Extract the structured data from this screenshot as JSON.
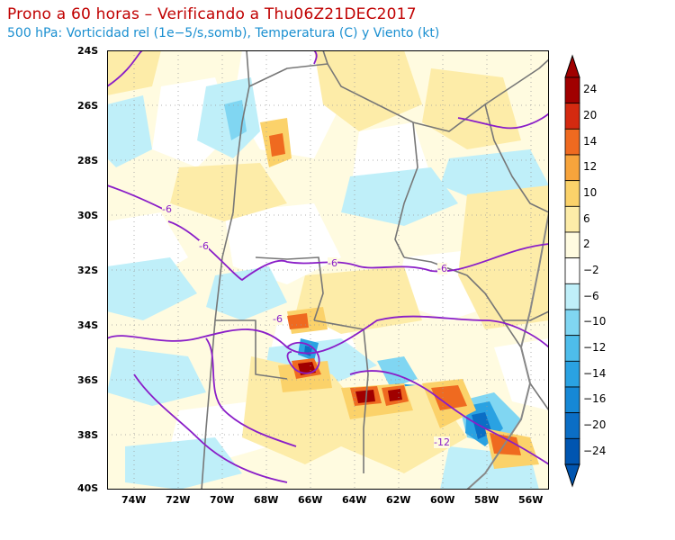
{
  "header": {
    "title": "Prono a 60 horas – Verificando a Thu06Z21DEC2017",
    "subtitle": "500 hPa: Vorticidad rel (1e−5/s,somb), Temperatura (C) y Viento (kt)"
  },
  "map": {
    "lat_labels": [
      "24S",
      "26S",
      "28S",
      "30S",
      "32S",
      "34S",
      "36S",
      "38S",
      "40S"
    ],
    "lon_labels": [
      "74W",
      "72W",
      "70W",
      "68W",
      "66W",
      "64W",
      "62W",
      "60W",
      "58W",
      "56W"
    ],
    "contour_labels": [
      "-6",
      "-6",
      "-6",
      "-6",
      "-6",
      "-12"
    ],
    "temperature_contour_color": "#8a1ec8",
    "boundary_color": "#777777"
  },
  "colorbar": {
    "levels": [
      "24",
      "20",
      "14",
      "12",
      "10",
      "6",
      "2",
      "−2",
      "−6",
      "−10",
      "−12",
      "−14",
      "−16",
      "−20",
      "−24"
    ],
    "colors": [
      "#a00000",
      "#d42a10",
      "#ef6a20",
      "#f7a43c",
      "#fbd26a",
      "#fdeca8",
      "#fffbe0",
      "#ffffff",
      "#bfeff9",
      "#80d6f2",
      "#4ebdeb",
      "#2aa2e2",
      "#1688d6",
      "#0b6ec5",
      "#0055b0"
    ]
  }
}
